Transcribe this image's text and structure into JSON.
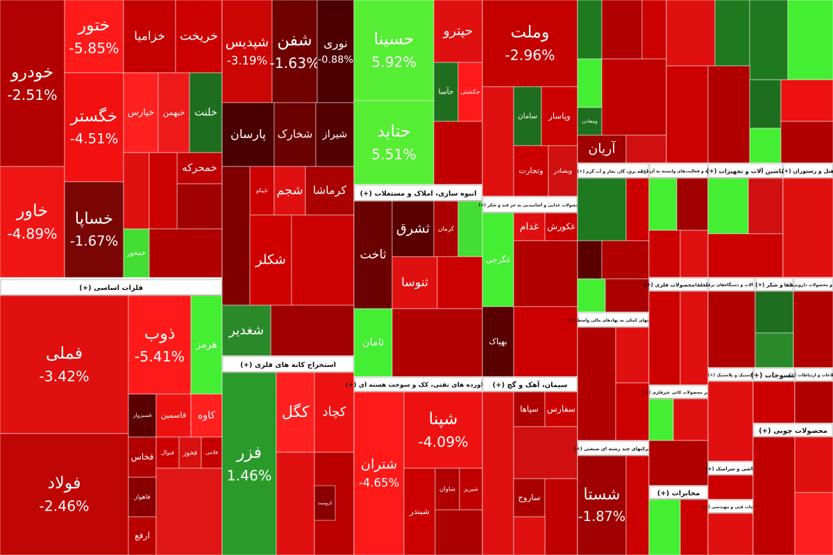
{
  "chart_data": {
    "type": "treemap",
    "groups": [
      {
        "tiles": [
          {
            "label": "خودرو",
            "value": -2.51,
            "value_label": "-2.51%",
            "color": "#b30000"
          },
          {
            "label": "خاور",
            "value": -4.89,
            "value_label": "-4.89%",
            "color": "#f01515"
          },
          {
            "label": "ختور",
            "value": -5.85,
            "value_label": "-5.85%",
            "color": "#ff1a1a"
          },
          {
            "label": "خگستر",
            "value": -4.51,
            "value_label": "-4.51%",
            "color": "#f21010"
          },
          {
            "label": "خساپا",
            "value": -1.67,
            "value_label": "-1.67%",
            "color": "#7a0505"
          },
          {
            "label": "خزامیا",
            "color": "#c40000"
          },
          {
            "label": "خریخت",
            "color": "#cc0000"
          },
          {
            "label": "خپارس",
            "color": "#ff2020"
          },
          {
            "label": "خبهمن",
            "color": "#ee1a1a"
          },
          {
            "label": "خلنت",
            "color": "#1f6e1f"
          },
          {
            "color": "#e01010"
          },
          {
            "label": "خمحرکه",
            "color": "#c00000"
          },
          {
            "color": "#a00000"
          },
          {
            "color": "#cc0000"
          },
          {
            "label": "خمحور",
            "color": "#44dd33"
          },
          {
            "color": "#b00000"
          }
        ]
      },
      {
        "name": "فلزات اساسی (+)",
        "tiles": [
          {
            "label": "فملی",
            "value": -3.42,
            "value_label": "-3.42%",
            "color": "#e01010"
          },
          {
            "label": "فولاد",
            "value": -2.46,
            "value_label": "-2.46%",
            "color": "#c00505"
          },
          {
            "label": "ذوب",
            "value": -5.41,
            "value_label": "-5.41%",
            "color": "#ff1a1a"
          },
          {
            "label": "هرمز",
            "color": "#44ee33"
          },
          {
            "label": "فسبزوار",
            "color": "#5a0000"
          },
          {
            "label": "فاسمین",
            "color": "#ee1111"
          },
          {
            "label": "کاوه",
            "color": "#ff2020"
          },
          {
            "label": "فخاس",
            "color": "#b00000"
          },
          {
            "label": "فنوال",
            "color": "#cc0000"
          },
          {
            "label": "فخوز",
            "color": "#d81010"
          },
          {
            "label": "فلامی",
            "color": "#c40000"
          },
          {
            "label": "فاهواز",
            "color": "#8a0000"
          },
          {
            "label": "ارفع",
            "color": "#bb0000"
          },
          {
            "color": "#e01515"
          }
        ]
      },
      {
        "tiles": [
          {
            "label": "شپدیس",
            "value": -3.19,
            "value_label": "-3.19%",
            "color": "#cc0505"
          },
          {
            "label": "شفن",
            "value": -1.63,
            "value_label": "-1.63%",
            "color": "#700000"
          },
          {
            "label": "نوری",
            "value": -0.88,
            "value_label": "-0.88%",
            "color": "#4d0000"
          },
          {
            "label": "پارسان",
            "color": "#4a0000"
          },
          {
            "label": "شخارک",
            "color": "#6b0000"
          },
          {
            "label": "شیراز",
            "color": "#550000"
          },
          {
            "label": "تاپیکو",
            "color": "#cc0000"
          },
          {
            "label": "شجم",
            "color": "#e01010"
          },
          {
            "label": "کرماشا",
            "color": "#aa0000"
          },
          {
            "color": "#800000"
          },
          {
            "label": "شکلر",
            "color": "#d00000"
          },
          {
            "color": "#cc0000"
          },
          {
            "color": "#a00000"
          },
          {
            "label": "شغدیر",
            "color": "#2a8a2a"
          }
        ]
      },
      {
        "name": "استخراج کانه های فلزی (+)",
        "tiles": [
          {
            "label": "فزر",
            "value": 1.46,
            "value_label": "1.46%",
            "color": "#2a9a2a"
          },
          {
            "label": "کگل",
            "color": "#ff2020"
          },
          {
            "label": "کچاد",
            "color": "#ee1111"
          },
          {
            "color": "#e01010"
          },
          {
            "color": "#bb0000"
          },
          {
            "label": "کرومیت",
            "color": "#8a0000"
          }
        ]
      },
      {
        "tiles": [
          {
            "label": "حسینا",
            "value": 5.92,
            "value_label": "5.92%",
            "color": "#55ee33"
          },
          {
            "label": "حتاید",
            "value": 5.51,
            "value_label": "5.51%",
            "color": "#55ee33"
          },
          {
            "label": "حپترو",
            "color": "#e01010"
          },
          {
            "label": "حآسا",
            "color": "#1f6e1f"
          },
          {
            "label": "حکشتی",
            "color": "#ff1a1a"
          },
          {
            "color": "#c00000"
          }
        ]
      },
      {
        "name": "انبوه سازی، املاک و مستغلات (+)",
        "tiles": [
          {
            "label": "ثاخت",
            "color": "#6a0000"
          },
          {
            "label": "ثشرق",
            "color": "#5a0000"
          },
          {
            "label": "کرمان",
            "color": "#aa0000"
          },
          {
            "color": "#44dd33"
          },
          {
            "label": "ثنوسا",
            "color": "#e01010"
          },
          {
            "color": "#cc0000"
          },
          {
            "label": "ثامان",
            "color": "#44ee33"
          },
          {
            "color": "#b00000"
          }
        ]
      },
      {
        "name": "فراورده های نفتی، کک و سوخت هسته ای (+)",
        "tiles": [
          {
            "label": "شتران",
            "value": -4.65,
            "value_label": "-4.65%",
            "color": "#ff1a1a"
          },
          {
            "label": "شپنا",
            "value": -4.09,
            "value_label": "-4.09%",
            "color": "#ee1111"
          },
          {
            "label": "شبندر",
            "color": "#cc0000"
          },
          {
            "label": "شاوان",
            "color": "#b00000"
          },
          {
            "label": "شبریز",
            "color": "#c00000"
          },
          {
            "color": "#aa0000"
          }
        ]
      },
      {
        "tiles": [
          {
            "label": "وملت",
            "value": -2.96,
            "value_label": "-2.96%",
            "color": "#c40000"
          },
          {
            "color": "#e01010"
          },
          {
            "label": "سامان",
            "color": "#1f6e1f"
          },
          {
            "label": "وپاسار",
            "color": "#cc0000"
          },
          {
            "label": "وتجارت",
            "color": "#cc0000"
          },
          {
            "label": "وبصادر",
            "color": "#d01010"
          }
        ]
      },
      {
        "name": "محصولات غذایی و آشامیدنی به جز قند و شکر (+)",
        "tiles": [
          {
            "label": "غگرجی",
            "color": "#44ee33"
          },
          {
            "label": "غدام",
            "color": "#e01010"
          },
          {
            "label": "غکورش",
            "color": "#cc0000"
          },
          {
            "color": "#b00000"
          },
          {
            "label": "بهپاک",
            "color": "#5a0000"
          },
          {
            "color": "#cc0000"
          }
        ]
      },
      {
        "name": "سیمان، آهک و گچ (+)",
        "tiles": [
          {
            "color": "#e01010"
          },
          {
            "label": "سپاها",
            "color": "#b00000"
          },
          {
            "label": "سفارس",
            "color": "#cc0000"
          },
          {
            "color": "#d01010"
          },
          {
            "label": "ساروج",
            "color": "#aa0000"
          },
          {
            "color": "#c00000"
          },
          {
            "color": "#e01010"
          }
        ]
      },
      {
        "tiles": [
          {
            "color": "#1f7a1f"
          },
          {
            "color": "#b00000"
          },
          {
            "color": "#cc0000"
          },
          {
            "color": "#44ee33"
          },
          {
            "label": "ومعادن",
            "color": "#1f6e1f"
          },
          {
            "color": "#c00000"
          },
          {
            "label": "آریان",
            "color": "#a00000"
          },
          {
            "color": "#d01010"
          }
        ]
      },
      {
        "tiles": [
          {
            "color": "#e01010"
          },
          {
            "color": "#1f7a1f"
          },
          {
            "color": "#1f7a1f"
          },
          {
            "color": "#44ee33"
          },
          {
            "color": "#cc0000"
          },
          {
            "color": "#b00000"
          },
          {
            "color": "#1f6e1f"
          },
          {
            "color": "#ee1111"
          },
          {
            "color": "#44ee33"
          },
          {
            "color": "#b00000"
          }
        ]
      },
      {
        "name": "عرضه برق، گاز، بخار و آب گرم (+)",
        "tiles": [
          {
            "color": "#1f7a1f"
          },
          {
            "color": "#cc0000"
          },
          {
            "color": "#5a0000"
          },
          {
            "color": "#b00000"
          },
          {
            "color": "#44ee33"
          },
          {
            "color": "#aa0000"
          }
        ]
      },
      {
        "name": "رایانه و فعالیت‌های وابسته به آن (+)",
        "tiles": [
          {
            "color": "#44ee33"
          },
          {
            "color": "#a00000"
          },
          {
            "color": "#cc0000"
          },
          {
            "color": "#e01010"
          }
        ]
      },
      {
        "name": "ماشین آلات و تجهیزات (+)",
        "tiles": [
          {
            "color": "#44ee33"
          },
          {
            "color": "#d01010"
          },
          {
            "color": "#cc0000"
          }
        ]
      },
      {
        "name": "هتل و رستوران (+)",
        "tiles": [
          {
            "color": "#e01010"
          }
        ]
      },
      {
        "name": "فعالیتهای کمکی به نهادهای مالی واسط (+)",
        "tiles": [
          {
            "color": "#b00000"
          },
          {
            "color": "#e01010"
          },
          {
            "color": "#cc0000"
          }
        ]
      },
      {
        "name": "ساخت محصولات فلزی (+)",
        "tiles": [
          {
            "color": "#cc0000"
          },
          {
            "color": "#e01010"
          }
        ]
      },
      {
        "name": "ماشین آلات و دستگاه‌های برقی (+)",
        "tiles": [
          {
            "color": "#b00000"
          }
        ]
      },
      {
        "name": "قند و شکر (+)",
        "tiles": [
          {
            "color": "#1f6e1f"
          },
          {
            "color": "#2a8a2a"
          }
        ]
      },
      {
        "name": "مواد و محصولات دارویی (+)",
        "tiles": [
          {
            "color": "#b00000"
          }
        ]
      },
      {
        "name": "شرکتهای چند رشته ای صنعتی (+)",
        "tiles": [
          {
            "label": "شستا",
            "value": -1.87,
            "value_label": "-1.87%",
            "color": "#a00000"
          },
          {
            "color": "#cc0000"
          }
        ]
      },
      {
        "name": "سایر محصولات کانی غیرفلزی (+)",
        "tiles": [
          {
            "color": "#44ee33"
          },
          {
            "color": "#e01010"
          },
          {
            "color": "#b00000"
          }
        ]
      },
      {
        "name": "مخابرات (+)",
        "tiles": [
          {
            "color": "#44ee33"
          },
          {
            "color": "#cc0000"
          }
        ]
      },
      {
        "name": "لاستیک و پلاستیک (+)",
        "tiles": [
          {
            "color": "#e01010"
          }
        ]
      },
      {
        "name": "منسوجات (+)",
        "tiles": [
          {
            "color": "#cc0000"
          }
        ]
      },
      {
        "name": "اطلاعات و ارتباطات (+)",
        "tiles": [
          {
            "color": "#b00000"
          }
        ]
      },
      {
        "name": "کاشی و سرامیک (+)",
        "tiles": [
          {
            "color": "#cc0000"
          }
        ]
      },
      {
        "name": "خدمات فنی و مهندسی (+)",
        "tiles": [
          {
            "color": "#e01010"
          }
        ]
      },
      {
        "name": "محصولات چوبی (+)",
        "tiles": [
          {
            "color": "#c00000"
          },
          {
            "color": "#e01010"
          },
          {
            "color": "#ff2020"
          }
        ]
      }
    ]
  }
}
